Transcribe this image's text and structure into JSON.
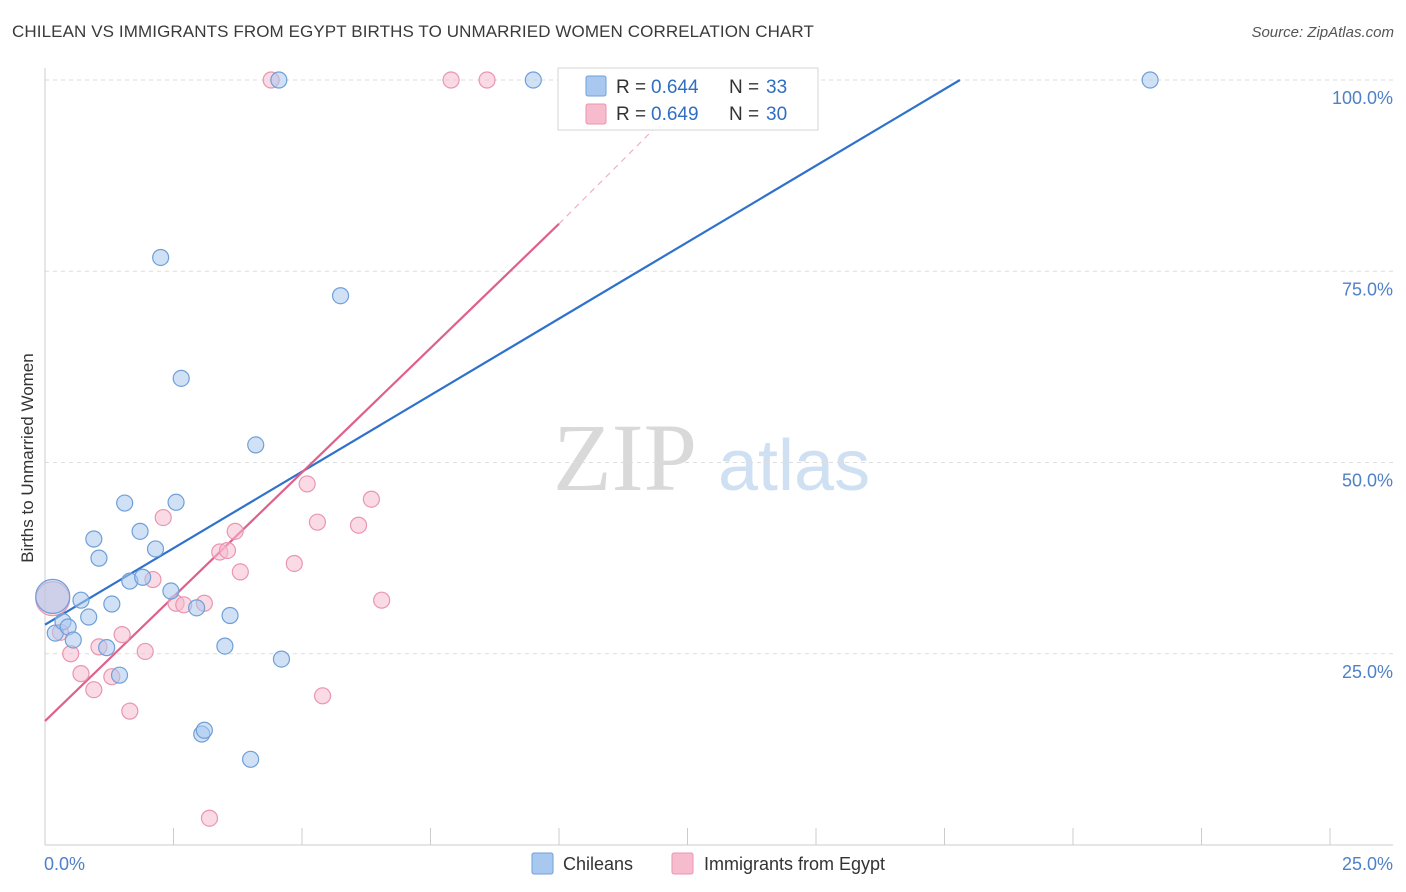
{
  "title": "CHILEAN VS IMMIGRANTS FROM EGYPT BIRTHS TO UNMARRIED WOMEN CORRELATION CHART",
  "source": "Source: ZipAtlas.com",
  "watermark": {
    "zip": "ZIP",
    "atlas": "atlas"
  },
  "colors": {
    "chileans_fill": "#a9c8ef",
    "chileans_stroke": "#6f9fd8",
    "chileans_line": "#2f72cc",
    "egypt_fill": "#f6bccd",
    "egypt_stroke": "#e996b0",
    "egypt_line": "#e0608c",
    "grid": "#dddddd",
    "tick_label": "#4f81c7"
  },
  "legend": {
    "rows": [
      {
        "r_label": "R = ",
        "r_value": "0.644",
        "n_label": "N = ",
        "n_value": "33"
      },
      {
        "r_label": "R = ",
        "r_value": "0.649",
        "n_label": "N = ",
        "n_value": "30"
      }
    ]
  },
  "bottom_legend": [
    "Chileans",
    "Immigrants from Egypt"
  ],
  "chart_data": {
    "type": "scatter",
    "title": "CHILEAN VS IMMIGRANTS FROM EGYPT BIRTHS TO UNMARRIED WOMEN CORRELATION CHART",
    "xlabel": "",
    "ylabel": "Births to Unmarried Women",
    "xlim": [
      0,
      25
    ],
    "ylim": [
      0,
      100
    ],
    "x_tick_labels": [
      "0.0%",
      "25.0%"
    ],
    "y_ticks": [
      25,
      50,
      75,
      100
    ],
    "y_tick_labels": [
      "25.0%",
      "50.0%",
      "75.0%",
      "100.0%"
    ],
    "series": [
      {
        "name": "Chileans",
        "r": 0.644,
        "n": 33,
        "trend": {
          "x0": 0,
          "y0": 28.8,
          "x1": 17.8,
          "y1": 100
        },
        "points": [
          {
            "x": 0.15,
            "y": 32.5,
            "big": true
          },
          {
            "x": 0.2,
            "y": 27.7
          },
          {
            "x": 0.35,
            "y": 29.2
          },
          {
            "x": 0.45,
            "y": 28.5
          },
          {
            "x": 0.55,
            "y": 26.8
          },
          {
            "x": 0.7,
            "y": 32.0
          },
          {
            "x": 0.85,
            "y": 29.8
          },
          {
            "x": 0.95,
            "y": 40.0
          },
          {
            "x": 1.05,
            "y": 37.5
          },
          {
            "x": 1.2,
            "y": 25.8
          },
          {
            "x": 1.3,
            "y": 31.5
          },
          {
            "x": 1.45,
            "y": 22.2
          },
          {
            "x": 1.55,
            "y": 44.7
          },
          {
            "x": 1.65,
            "y": 34.5
          },
          {
            "x": 1.85,
            "y": 41.0
          },
          {
            "x": 1.9,
            "y": 35.0
          },
          {
            "x": 2.15,
            "y": 38.7
          },
          {
            "x": 2.25,
            "y": 76.8
          },
          {
            "x": 2.45,
            "y": 33.2
          },
          {
            "x": 2.55,
            "y": 44.8
          },
          {
            "x": 2.65,
            "y": 61.0
          },
          {
            "x": 2.95,
            "y": 31.0
          },
          {
            "x": 3.05,
            "y": 14.5
          },
          {
            "x": 3.1,
            "y": 15.0
          },
          {
            "x": 3.5,
            "y": 26.0
          },
          {
            "x": 3.6,
            "y": 30.0
          },
          {
            "x": 4.0,
            "y": 11.2
          },
          {
            "x": 4.1,
            "y": 52.3
          },
          {
            "x": 4.55,
            "y": 100
          },
          {
            "x": 4.6,
            "y": 24.3
          },
          {
            "x": 5.75,
            "y": 71.8
          },
          {
            "x": 9.5,
            "y": 100
          },
          {
            "x": 21.5,
            "y": 100
          }
        ]
      },
      {
        "name": "Immigrants from Egypt",
        "r": 0.649,
        "n": 30,
        "trend": {
          "x0": 0,
          "y0": 16.2,
          "x1": 10,
          "y1": 81.2,
          "dash_x1": 12.8,
          "dash_y1": 100
        },
        "points": [
          {
            "x": 0.15,
            "y": 32.2,
            "big": true
          },
          {
            "x": 0.3,
            "y": 27.8
          },
          {
            "x": 0.5,
            "y": 25.0
          },
          {
            "x": 0.7,
            "y": 22.4
          },
          {
            "x": 0.95,
            "y": 20.3
          },
          {
            "x": 1.05,
            "y": 25.9
          },
          {
            "x": 1.3,
            "y": 22.0
          },
          {
            "x": 1.5,
            "y": 27.5
          },
          {
            "x": 1.65,
            "y": 17.5
          },
          {
            "x": 1.95,
            "y": 25.3
          },
          {
            "x": 2.1,
            "y": 34.7
          },
          {
            "x": 2.3,
            "y": 42.8
          },
          {
            "x": 2.55,
            "y": 31.6
          },
          {
            "x": 2.7,
            "y": 31.4
          },
          {
            "x": 3.1,
            "y": 31.6
          },
          {
            "x": 3.2,
            "y": 3.5
          },
          {
            "x": 3.4,
            "y": 38.3
          },
          {
            "x": 3.55,
            "y": 38.5
          },
          {
            "x": 3.7,
            "y": 41.0
          },
          {
            "x": 3.8,
            "y": 35.7
          },
          {
            "x": 4.4,
            "y": 100
          },
          {
            "x": 4.85,
            "y": 36.8
          },
          {
            "x": 5.1,
            "y": 47.2
          },
          {
            "x": 5.3,
            "y": 42.2
          },
          {
            "x": 5.4,
            "y": 19.5
          },
          {
            "x": 6.1,
            "y": 41.8
          },
          {
            "x": 6.35,
            "y": 45.2
          },
          {
            "x": 6.55,
            "y": 32.0
          },
          {
            "x": 7.9,
            "y": 100
          },
          {
            "x": 8.6,
            "y": 100
          }
        ]
      }
    ]
  }
}
